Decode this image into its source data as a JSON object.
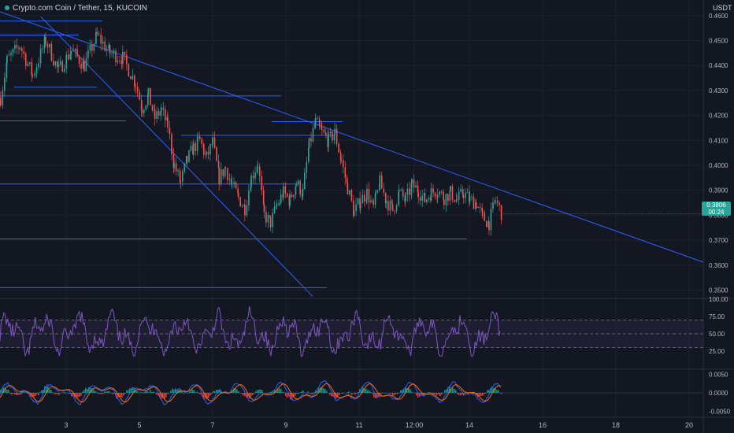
{
  "header": {
    "symbol_title": "Crypto.com Coin / Tether, 15, KUCOIN",
    "currency": "USDT"
  },
  "price_badge": {
    "price": "0.3806",
    "countdown": "00:24"
  },
  "colors": {
    "background": "#131722",
    "grid": "#1e222d",
    "up": "#26a69a",
    "down": "#ef5350",
    "trendline": "#2962ff",
    "rsi": "#7e57c2",
    "macd": "#2962ff",
    "signal": "#ff6d00"
  },
  "chart_data": [
    {
      "type": "candlestick",
      "panel": "price",
      "x_ticks": [
        "3",
        "5",
        "7",
        "9",
        "11",
        "12:00",
        "14",
        "16",
        "18",
        "20"
      ],
      "y_ticks": [
        "0.4600",
        "0.4500",
        "0.4400",
        "0.4300",
        "0.4200",
        "0.4100",
        "0.4000",
        "0.3900",
        "0.3800",
        "0.3700",
        "0.3600",
        "0.3500"
      ],
      "ylim": [
        0.347,
        0.4615
      ],
      "last_price": 0.3806,
      "price_path": [
        [
          0,
          0.427
        ],
        [
          2,
          0.442
        ],
        [
          6,
          0.448
        ],
        [
          10,
          0.436
        ],
        [
          14,
          0.45
        ],
        [
          18,
          0.438
        ],
        [
          22,
          0.446
        ],
        [
          26,
          0.44
        ],
        [
          30,
          0.452
        ],
        [
          34,
          0.445
        ],
        [
          38,
          0.443
        ],
        [
          42,
          0.433
        ],
        [
          44,
          0.423
        ],
        [
          46,
          0.428
        ],
        [
          48,
          0.419
        ],
        [
          50,
          0.422
        ],
        [
          52,
          0.416
        ],
        [
          54,
          0.4
        ],
        [
          56,
          0.393
        ],
        [
          58,
          0.402
        ],
        [
          60,
          0.407
        ],
        [
          62,
          0.41
        ],
        [
          64,
          0.403
        ],
        [
          66,
          0.409
        ],
        [
          68,
          0.395
        ],
        [
          70,
          0.399
        ],
        [
          72,
          0.392
        ],
        [
          74,
          0.387
        ],
        [
          76,
          0.383
        ],
        [
          78,
          0.395
        ],
        [
          80,
          0.401
        ],
        [
          82,
          0.38
        ],
        [
          84,
          0.377
        ],
        [
          86,
          0.384
        ],
        [
          88,
          0.389
        ],
        [
          90,
          0.386
        ],
        [
          92,
          0.393
        ],
        [
          94,
          0.389
        ],
        [
          96,
          0.408
        ],
        [
          98,
          0.417
        ],
        [
          100,
          0.413
        ],
        [
          102,
          0.41
        ],
        [
          104,
          0.413
        ],
        [
          106,
          0.402
        ],
        [
          108,
          0.391
        ],
        [
          110,
          0.381
        ],
        [
          112,
          0.386
        ],
        [
          114,
          0.389
        ],
        [
          116,
          0.383
        ],
        [
          118,
          0.393
        ],
        [
          120,
          0.386
        ],
        [
          122,
          0.382
        ],
        [
          124,
          0.389
        ],
        [
          126,
          0.386
        ],
        [
          128,
          0.392
        ],
        [
          130,
          0.39
        ],
        [
          132,
          0.386
        ],
        [
          134,
          0.389
        ],
        [
          136,
          0.39
        ],
        [
          138,
          0.387
        ],
        [
          140,
          0.389
        ],
        [
          142,
          0.386
        ],
        [
          144,
          0.389
        ],
        [
          146,
          0.386
        ],
        [
          148,
          0.385
        ],
        [
          150,
          0.379
        ],
        [
          152,
          0.377
        ],
        [
          154,
          0.386
        ],
        [
          156,
          0.3806
        ]
      ]
    },
    {
      "type": "line",
      "panel": "rsi",
      "y_ticks": [
        "100.00",
        "75.00",
        "50.00",
        "25.00"
      ],
      "ylim": [
        0,
        100
      ],
      "band": [
        30,
        70
      ]
    },
    {
      "type": "histogram",
      "panel": "macd",
      "y_ticks": [
        "0.0050",
        "0.0000",
        "-0.0050"
      ],
      "ylim": [
        -0.0062,
        0.0062
      ]
    }
  ]
}
